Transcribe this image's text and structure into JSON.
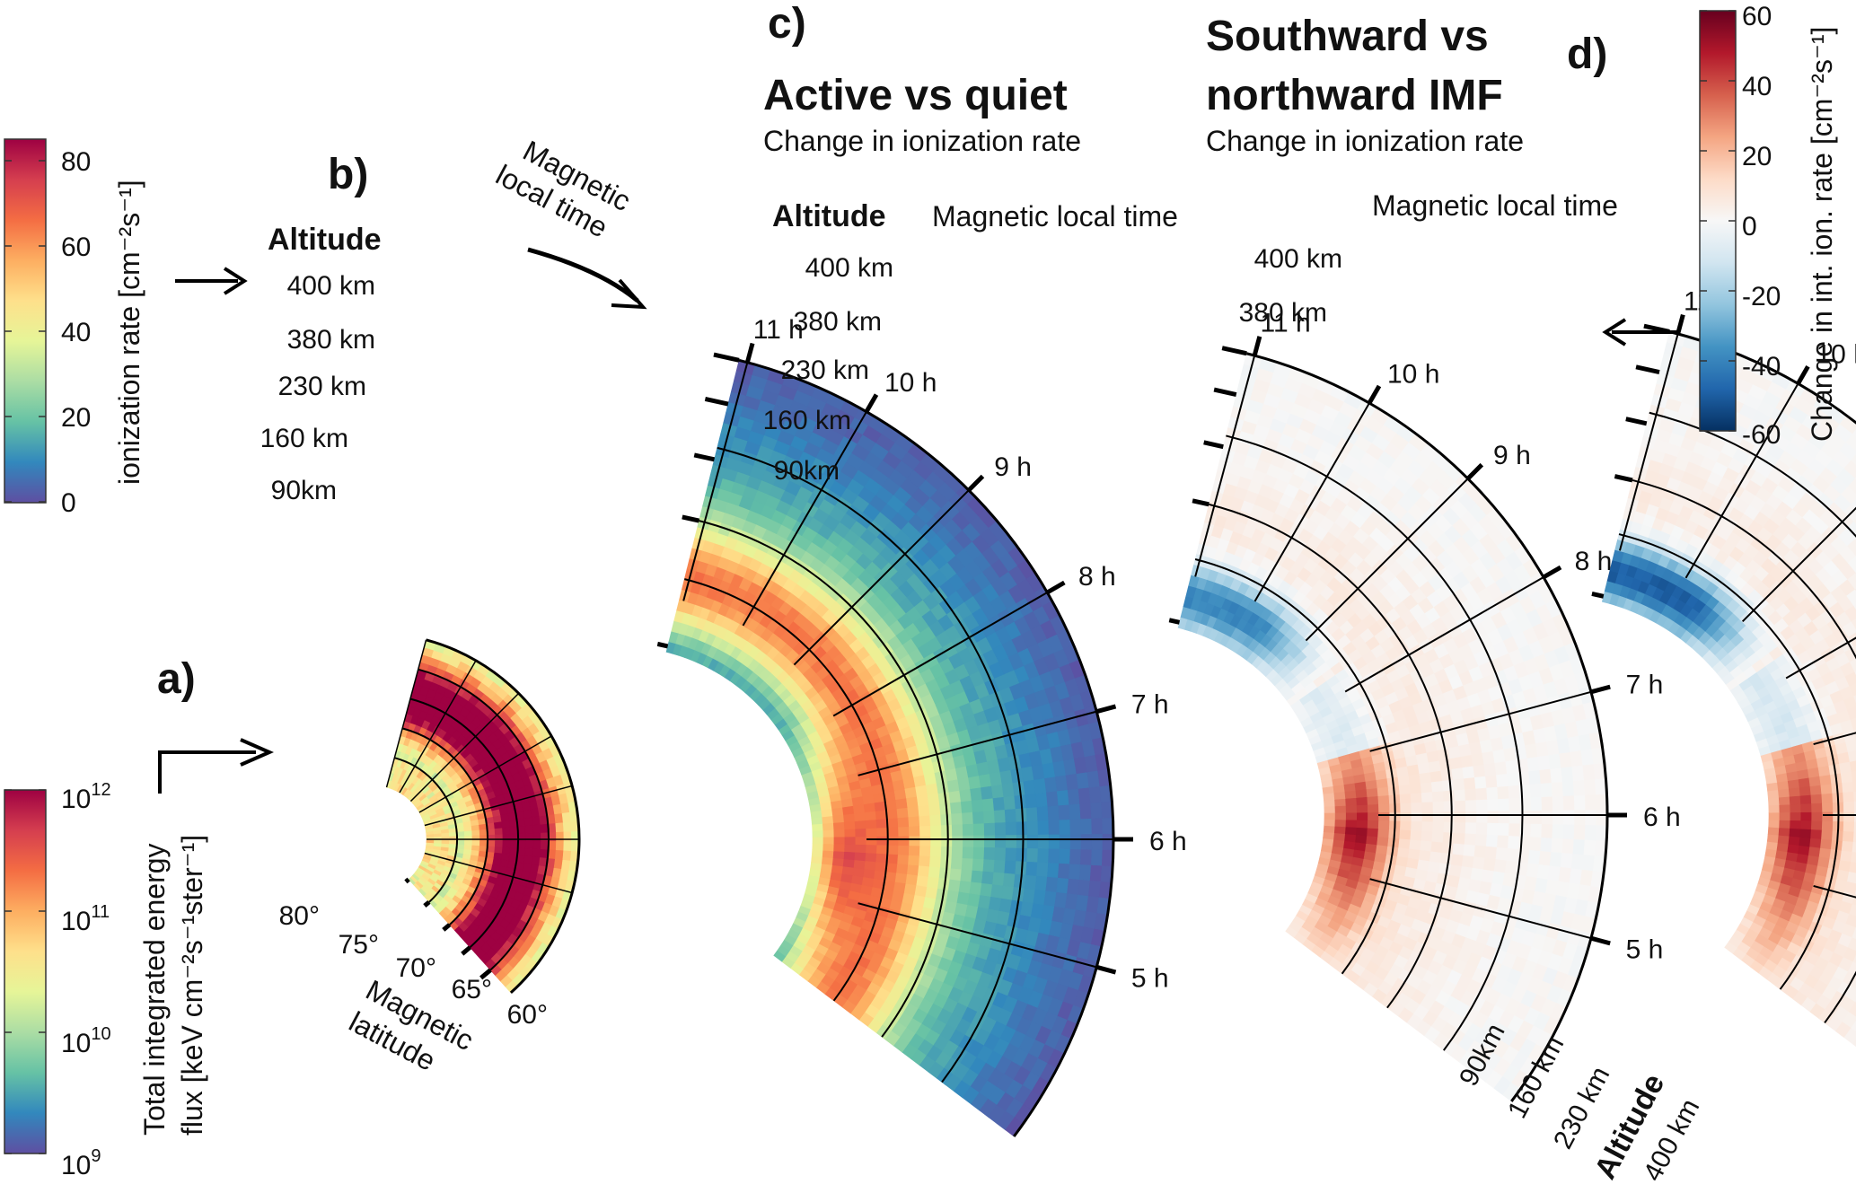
{
  "chart_data": [
    {
      "panel": "a)",
      "type": "heatmap",
      "subtype": "polar-sector",
      "description_labels": {
        "axis_label_line1": "Magnetic",
        "axis_label_line2": "latitude"
      },
      "latitude_ticks": [
        "80°",
        "75°",
        "70°",
        "65°",
        "60°"
      ],
      "latitude_values": [
        80,
        75,
        70,
        65,
        60
      ],
      "mlt_range_h": [
        4,
        11
      ],
      "colorbar": {
        "label_line1": "Total integrated energy",
        "label_line2": "flux [keV cm⁻²s⁻¹ster⁻¹]",
        "scale": "log",
        "range": [
          1000000000.0,
          1000000000000.0
        ],
        "ticks": [
          {
            "base": "10",
            "exp": "12"
          },
          {
            "base": "10",
            "exp": "11"
          },
          {
            "base": "10",
            "exp": "10"
          },
          {
            "base": "10",
            "exp": "9"
          }
        ],
        "tick_values": [
          12,
          11,
          10,
          9
        ]
      }
    },
    {
      "panel": "b)",
      "type": "heatmap",
      "subtype": "polar-sector",
      "radial_label": "Altitude",
      "altitude_ticks": [
        "400 km",
        "380 km",
        "230 km",
        "160 km",
        "90km"
      ],
      "mlt_ticks": [
        "11 h",
        "10 h",
        "9 h",
        "8 h",
        "7 h",
        "6 h",
        "5 h"
      ],
      "mlt_annotation_line1": "Magnetic",
      "mlt_annotation_line2": "local time",
      "colorbar": {
        "label": "ionization  rate [cm⁻²s⁻¹]",
        "range": [
          0,
          85
        ],
        "ticks": [
          "80",
          "60",
          "40",
          "20",
          "0"
        ],
        "tick_values": [
          80,
          60,
          40,
          20,
          0
        ]
      }
    },
    {
      "panel": "c)",
      "type": "heatmap",
      "subtype": "polar-sector-difference",
      "title": "Active vs quiet",
      "subtitle": "Change in ionization rate",
      "radial_label": "Altitude",
      "mlt_label": "Magnetic local time",
      "altitude_ticks": [
        "400 km",
        "380 km",
        "230 km",
        "160 km",
        "90km"
      ],
      "mlt_ticks": [
        "11 h",
        "10 h",
        "9 h",
        "8 h",
        "7 h",
        "6 h",
        "5 h"
      ]
    },
    {
      "panel": "d)",
      "type": "heatmap",
      "subtype": "polar-sector-difference",
      "title_line1": "Southward vs",
      "title_line2": "northward IMF",
      "subtitle": "Change in ionization rate",
      "mlt_label": "Magnetic local time",
      "altitude_ticks_top": [
        "400 km",
        "380 km"
      ],
      "altitude_ticks_bottom": [
        "90km",
        "160 km",
        "230 km",
        "400 km"
      ],
      "radial_label": "Altitude",
      "mlt_ticks": [
        "11 h",
        "10 h",
        "9 h",
        "8 h",
        "7 h",
        "6 h",
        "5 h"
      ],
      "colorbar": {
        "label": "Change in int. ion. rate [cm⁻²s⁻¹]",
        "range": [
          -60,
          60
        ],
        "ticks": [
          "60",
          "40",
          "20",
          "0",
          "-20",
          "-40",
          "-60"
        ],
        "tick_values": [
          60,
          40,
          20,
          0,
          -20,
          -40,
          -60
        ]
      }
    }
  ],
  "colors": {
    "rainbow": [
      "#5e4fa2",
      "#3288bd",
      "#66c2a5",
      "#abdda4",
      "#e6f598",
      "#fee08b",
      "#fdae61",
      "#f46d43",
      "#d53e4f",
      "#9e0142"
    ],
    "diverging": [
      "#053061",
      "#2166ac",
      "#4393c3",
      "#92c5de",
      "#d1e5f0",
      "#f7f7f7",
      "#fddbc7",
      "#f4a582",
      "#d6604d",
      "#b2182b",
      "#67001f"
    ]
  }
}
